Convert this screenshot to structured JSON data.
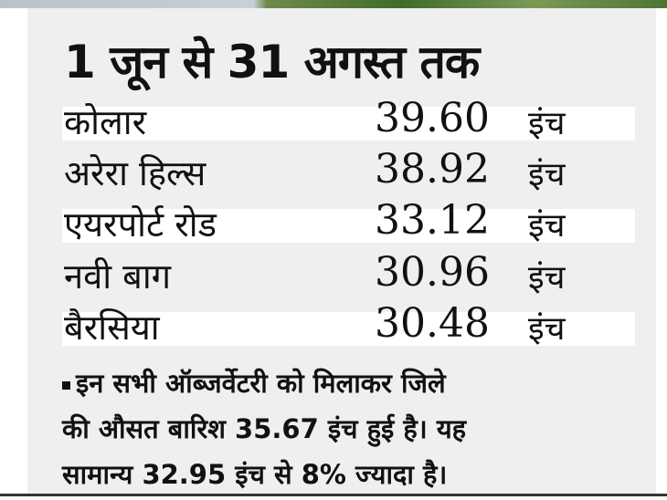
{
  "title": "1 जून से 31 अगस्त तक",
  "rows": [
    {
      "location": "कोलार",
      "value": "39.60",
      "unit": "इंच"
    },
    {
      "location": "अरेरा हिल्स",
      "value": "38.92",
      "unit": "इंच"
    },
    {
      "location": "एयरपोर्ट रोड",
      "value": "33.12",
      "unit": "इंच"
    },
    {
      "location": "नवी बाग",
      "value": "30.96",
      "unit": "इंच"
    },
    {
      "location": "बैरसिया",
      "value": "30.48",
      "unit": "इंच"
    }
  ],
  "note": {
    "line1": "इन सभी ऑब्जर्वेटरी को मिलाकर जिले",
    "line2": "की औसत बारिश 35.67 इंच हुई है। यह",
    "line3": "सामान्य 32.95 इंच से 8% ज्यादा है।"
  },
  "colors": {
    "panel": "#efefef",
    "highlight_row": "#ffffff",
    "text": "#111111"
  }
}
